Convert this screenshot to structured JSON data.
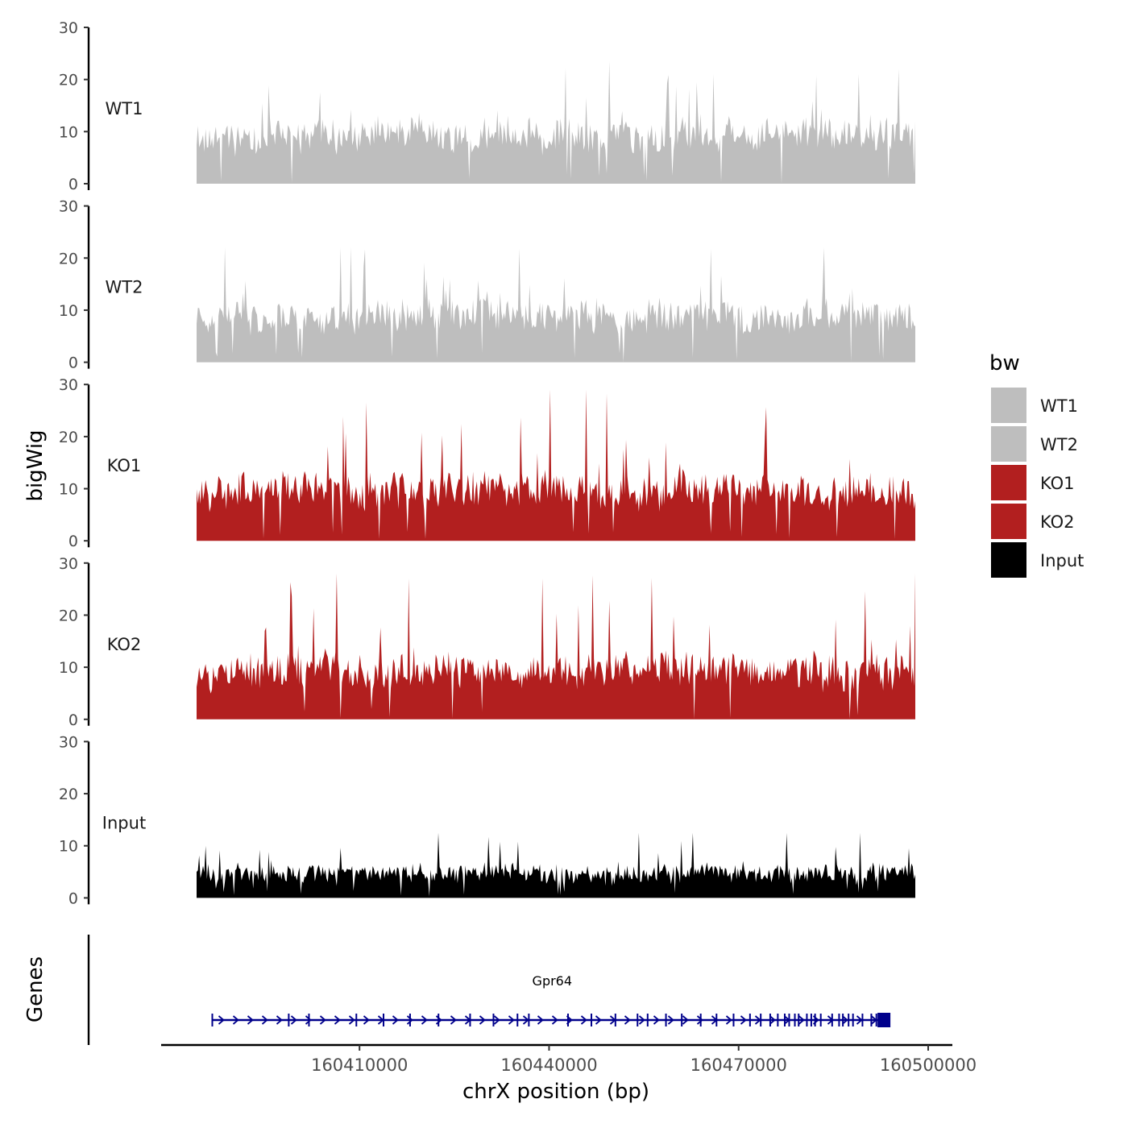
{
  "chart_data": {
    "type": "area",
    "region": {
      "chromosome": "chrX",
      "start": 160385000,
      "end": 160493500
    },
    "ylabel": "bigWig",
    "xlabel": "chrX position (bp)",
    "ylim": [
      0,
      30
    ],
    "y_ticks": [
      0,
      10,
      20,
      30
    ],
    "x_ticks": [
      160410000,
      160440000,
      160470000,
      160500000
    ],
    "tracks": [
      {
        "name": "WT1",
        "color": "#bebebe",
        "mean": 9,
        "spread": 6,
        "max": 24,
        "seed": 11
      },
      {
        "name": "WT2",
        "color": "#bebebe",
        "mean": 8.5,
        "spread": 6,
        "max": 22,
        "seed": 23
      },
      {
        "name": "KO1",
        "color": "#b21f1f",
        "mean": 9.5,
        "spread": 6.5,
        "max": 29,
        "seed": 37
      },
      {
        "name": "KO2",
        "color": "#b21f1f",
        "mean": 9,
        "spread": 6.5,
        "max": 28,
        "seed": 53
      },
      {
        "name": "Input",
        "color": "#000000",
        "mean": 4.5,
        "spread": 3.5,
        "max": 12.5,
        "seed": 71
      }
    ],
    "legend": {
      "title": "bw",
      "entries": [
        {
          "label": "WT1",
          "color": "#bebebe"
        },
        {
          "label": "WT2",
          "color": "#bebebe"
        },
        {
          "label": "KO1",
          "color": "#b21f1f"
        },
        {
          "label": "KO2",
          "color": "#b21f1f"
        },
        {
          "label": "Input",
          "color": "#000000"
        }
      ]
    },
    "genes_panel": {
      "ylabel": "Genes",
      "gene": {
        "name": "Gpr64",
        "start": 160386700,
        "end": 160493000,
        "strand": "+",
        "color": "#00008b"
      },
      "exons": [
        160386700,
        160398800,
        160402000,
        160409500,
        160413800,
        160418000,
        160422500,
        160427500,
        160431200,
        160435000,
        160436800,
        160443000,
        160446700,
        160450500,
        160454000,
        160455600,
        160458500,
        160461000,
        160464000,
        160466500,
        160469200,
        160471800,
        160473500,
        160475000,
        160476200,
        160477300,
        160478000,
        160478900,
        160479500,
        160480800,
        160481500,
        160482100,
        160483000,
        160484800,
        160485900,
        160486500,
        160487400,
        160488100,
        160489600,
        160491000,
        160491800,
        160492600
      ]
    }
  }
}
